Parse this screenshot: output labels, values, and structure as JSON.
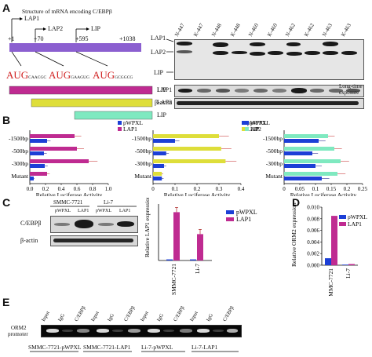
{
  "panels": {
    "a": "A",
    "b": "B",
    "c": "C",
    "d": "D",
    "e": "E"
  },
  "panelA": {
    "structure_title": "Structure of mRNA encoding C/EBPβ",
    "pos_start": "+1",
    "pos_lap1": "LAP1",
    "pos_lap2": "LAP2",
    "pos_70": "+70",
    "pos_lip": "LIP",
    "pos_595": "+595",
    "pos_1038": "+1038",
    "aug1": "AUG",
    "seq1": "CAACGC",
    "aug2": "AUG",
    "seq2": "GAAGUG",
    "aug3": "AUG",
    "seq3": "GCGGCG",
    "bar_lap1": "LAP1",
    "bar_lap2": "LAP2",
    "bar_lip": "LIP",
    "blot_lanes": [
      "N-447",
      "K-447",
      "N-448",
      "K-448",
      "N-460",
      "K-460",
      "N-462",
      "K-462",
      "N-463",
      "K-463"
    ],
    "blot_lap1": "LAP1",
    "blot_lap2": "LAP2",
    "blot_lip": "LIP",
    "blot_lip2": "LIP",
    "long_time": "Long-time",
    "exposure": "exposure",
    "actin": "β-actin"
  },
  "panelB": {
    "xlabel": "Relative Luciferase Activity",
    "categories": [
      "-1500bp",
      "-500bp",
      "-300bp",
      "Mutant"
    ],
    "legend_pwpxl": "pWPXL",
    "legend_lap1": "LAP1",
    "legend_lap2": "LAP2",
    "legend_lip": "LIP",
    "ticks1": [
      "0.0",
      "0.2",
      "0.4",
      "0.6",
      "0.8",
      "1.0"
    ],
    "ticks2": [
      "0",
      "0.1",
      "0.2",
      "0.3",
      "0.4"
    ],
    "ticks3": [
      "0",
      "0.05",
      "0.1",
      "0.15",
      "0.2",
      "0.25"
    ]
  },
  "panelC": {
    "cell1": "SMMC-7721",
    "cell2": "Li-7",
    "lanes": [
      "pWPXL",
      "LAP1",
      "pWPXL",
      "LAP1"
    ],
    "row1": "C/EBPβ",
    "row2": "β-actin",
    "ylabel": "Relative LAP1 expression",
    "categories": [
      "SMMC-7721",
      "Li-7"
    ],
    "legend_pwpxl": "pWPXL",
    "legend_lap1": "LAP1"
  },
  "panelD": {
    "ylabel": "Relative ORM2 expression",
    "categories": [
      "SMMC-7721",
      "Li-7"
    ],
    "ticks": [
      "0.000",
      "0.002",
      "0.004",
      "0.006",
      "0.008",
      "0.010"
    ],
    "legend_pwpxl": "pWPXL",
    "legend_lap1": "LAP1"
  },
  "panelE": {
    "row_label1": "ORM2",
    "row_label2": "promoter",
    "lanes": [
      "Input",
      "IgG",
      "C/EBPβ",
      "Input",
      "IgG",
      "C/EBPβ",
      "Input",
      "IgG",
      "C/EBPβ",
      "Input",
      "IgG",
      "C/EBPβ"
    ],
    "groups": [
      "SMMC-7721-pWPXL",
      "SMMC-7721-LAP1",
      "Li-7-pWPXL",
      "Li-7-LAP1"
    ]
  },
  "colors": {
    "pwpxl": "#1c3fd6",
    "lap1": "#bf2b91",
    "lap2": "#dede3a",
    "lip": "#7fe9c0",
    "mrna": "#8b5fd0",
    "aug": "#d02020"
  },
  "chart_data": [
    {
      "type": "bar",
      "orientation": "horizontal",
      "panel": "B-1",
      "xlabel": "Relative Luciferase Activity",
      "xlim": [
        0,
        1.0
      ],
      "categories": [
        "-1500bp",
        "-500bp",
        "-300bp",
        "Mutant"
      ],
      "series": [
        {
          "name": "pWPXL",
          "values": [
            0.22,
            0.18,
            0.19,
            0.05
          ]
        },
        {
          "name": "LAP1",
          "values": [
            0.57,
            0.6,
            0.75,
            0.22
          ]
        }
      ]
    },
    {
      "type": "bar",
      "orientation": "horizontal",
      "panel": "B-2",
      "xlabel": "Relative Luciferase Activity",
      "xlim": [
        0,
        0.4
      ],
      "categories": [
        "-1500bp",
        "-500bp",
        "-300bp",
        "Mutant"
      ],
      "series": [
        {
          "name": "pWPXL",
          "values": [
            0.1,
            0.06,
            0.05,
            0.04
          ]
        },
        {
          "name": "LAP2",
          "values": [
            0.3,
            0.31,
            0.33,
            0.04
          ]
        }
      ]
    },
    {
      "type": "bar",
      "orientation": "horizontal",
      "panel": "B-3",
      "xlabel": "Relative Luciferase Activity",
      "xlim": [
        0,
        0.25
      ],
      "categories": [
        "-1500bp",
        "-500bp",
        "-300bp",
        "Mutant"
      ],
      "series": [
        {
          "name": "pWPXL",
          "values": [
            0.11,
            0.09,
            0.1,
            0.12
          ]
        },
        {
          "name": "LIP",
          "values": [
            0.14,
            0.16,
            0.18,
            0.17
          ]
        }
      ]
    },
    {
      "type": "bar",
      "panel": "C",
      "ylabel": "Relative LAP1 expression",
      "categories": [
        "SMMC-7721",
        "Li-7"
      ],
      "series": [
        {
          "name": "pWPXL",
          "values": [
            0.02,
            0.02
          ]
        },
        {
          "name": "LAP1",
          "values": [
            0.88,
            0.48
          ]
        }
      ]
    },
    {
      "type": "bar",
      "panel": "D",
      "ylabel": "Relative ORM2 expression",
      "ylim": [
        0,
        0.01
      ],
      "categories": [
        "SMMC-7721",
        "Li-7"
      ],
      "series": [
        {
          "name": "pWPXL",
          "values": [
            0.0012,
            0.0001
          ]
        },
        {
          "name": "LAP1",
          "values": [
            0.0085,
            0.0002
          ]
        }
      ]
    }
  ]
}
